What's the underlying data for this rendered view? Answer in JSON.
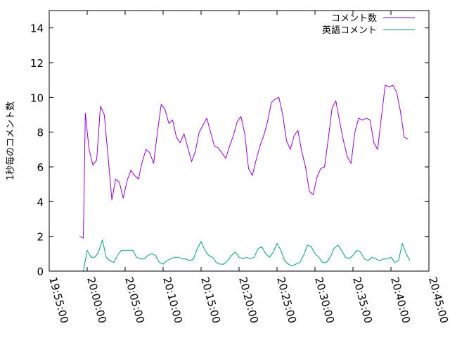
{
  "chart_data": {
    "type": "line",
    "ylabel": "1秒毎のコメント数",
    "xlabel": "",
    "title": "",
    "x_unit": "time",
    "xlim": [
      "19:55:00",
      "20:45:00"
    ],
    "ylim": [
      0,
      15
    ],
    "x_ticks": [
      "19:55:00",
      "20:00:00",
      "20:05:00",
      "20:10:00",
      "20:15:00",
      "20:20:00",
      "20:25:00",
      "20:30:00",
      "20:35:00",
      "20:40:00",
      "20:45:00"
    ],
    "y_ticks": [
      0,
      2,
      4,
      6,
      8,
      10,
      12,
      14
    ],
    "grid": false,
    "legend_position": "top-right",
    "series": [
      {
        "name": "コメント数",
        "color": "#9400d3",
        "x": [
          "19:59:00",
          "19:59:30",
          "19:59:45",
          "20:00:15",
          "20:00:45",
          "20:01:15",
          "20:01:45",
          "20:02:15",
          "20:02:45",
          "20:03:15",
          "20:03:45",
          "20:04:15",
          "20:04:45",
          "20:05:15",
          "20:05:45",
          "20:06:15",
          "20:06:45",
          "20:07:15",
          "20:07:45",
          "20:08:15",
          "20:08:45",
          "20:09:15",
          "20:09:45",
          "20:10:15",
          "20:10:45",
          "20:11:15",
          "20:11:45",
          "20:12:15",
          "20:12:45",
          "20:13:15",
          "20:13:45",
          "20:14:15",
          "20:14:45",
          "20:15:15",
          "20:15:45",
          "20:16:15",
          "20:16:45",
          "20:17:15",
          "20:17:45",
          "20:18:15",
          "20:18:45",
          "20:19:15",
          "20:19:45",
          "20:20:15",
          "20:20:45",
          "20:21:15",
          "20:21:45",
          "20:22:15",
          "20:22:45",
          "20:23:15",
          "20:23:45",
          "20:24:15",
          "20:24:45",
          "20:25:15",
          "20:25:45",
          "20:26:15",
          "20:26:45",
          "20:27:15",
          "20:27:45",
          "20:28:15",
          "20:28:45",
          "20:29:15",
          "20:29:45",
          "20:30:15",
          "20:30:45",
          "20:31:15",
          "20:31:45",
          "20:32:15",
          "20:32:45",
          "20:33:15",
          "20:33:45",
          "20:34:15",
          "20:34:45",
          "20:35:15",
          "20:35:45",
          "20:36:15",
          "20:36:45",
          "20:37:15",
          "20:37:45",
          "20:38:15",
          "20:38:45",
          "20:39:15",
          "20:39:45",
          "20:40:15",
          "20:40:45",
          "20:41:15",
          "20:41:45",
          "20:42:15"
        ],
        "values": [
          2.0,
          1.9,
          9.1,
          7.0,
          6.1,
          6.4,
          9.5,
          9.0,
          6.6,
          4.1,
          5.3,
          5.1,
          4.2,
          5.2,
          5.8,
          5.5,
          5.3,
          6.3,
          7.0,
          6.8,
          6.2,
          8.0,
          9.6,
          9.3,
          8.5,
          8.7,
          7.7,
          7.4,
          7.9,
          7.1,
          6.3,
          6.9,
          8.0,
          8.4,
          8.8,
          8.0,
          7.2,
          7.1,
          6.8,
          6.5,
          7.2,
          7.8,
          8.6,
          8.9,
          7.9,
          5.9,
          5.5,
          6.4,
          7.2,
          7.8,
          8.6,
          9.7,
          9.9,
          10.0,
          9.0,
          7.5,
          7.0,
          7.8,
          8.1,
          6.9,
          6.0,
          4.6,
          4.4,
          5.4,
          5.9,
          6.0,
          7.6,
          9.4,
          9.8,
          8.6,
          7.5,
          6.6,
          6.2,
          8.0,
          8.8,
          8.7,
          8.8,
          8.7,
          7.4,
          7.0,
          8.9,
          10.7,
          10.6,
          10.7,
          10.3,
          9.2,
          7.7,
          7.6
        ]
      },
      {
        "name": "英語コメント",
        "color": "#009e73",
        "x": [
          "19:59:00",
          "19:59:30",
          "20:00:00",
          "20:00:30",
          "20:01:00",
          "20:01:30",
          "20:02:00",
          "20:02:30",
          "20:03:00",
          "20:03:30",
          "20:04:00",
          "20:04:30",
          "20:05:00",
          "20:05:30",
          "20:06:00",
          "20:06:30",
          "20:07:00",
          "20:07:30",
          "20:08:00",
          "20:08:30",
          "20:09:00",
          "20:09:30",
          "20:10:00",
          "20:10:30",
          "20:11:00",
          "20:11:30",
          "20:12:00",
          "20:12:30",
          "20:13:00",
          "20:13:30",
          "20:14:00",
          "20:14:30",
          "20:15:00",
          "20:15:30",
          "20:16:00",
          "20:16:30",
          "20:17:00",
          "20:17:30",
          "20:18:00",
          "20:18:30",
          "20:19:00",
          "20:19:30",
          "20:20:00",
          "20:20:30",
          "20:21:00",
          "20:21:30",
          "20:22:00",
          "20:22:30",
          "20:23:00",
          "20:23:30",
          "20:24:00",
          "20:24:30",
          "20:25:00",
          "20:25:30",
          "20:26:00",
          "20:26:30",
          "20:27:00",
          "20:27:30",
          "20:28:00",
          "20:28:30",
          "20:29:00",
          "20:29:30",
          "20:30:00",
          "20:30:30",
          "20:31:00",
          "20:31:30",
          "20:32:00",
          "20:32:30",
          "20:33:00",
          "20:33:30",
          "20:34:00",
          "20:34:30",
          "20:35:00",
          "20:35:30",
          "20:36:00",
          "20:36:30",
          "20:37:00",
          "20:37:30",
          "20:38:00",
          "20:38:30",
          "20:39:00",
          "20:39:30",
          "20:40:00",
          "20:40:30",
          "20:41:00",
          "20:41:30",
          "20:42:00",
          "20:42:30"
        ],
        "values": [
          0.0,
          0.0,
          1.2,
          0.8,
          0.8,
          1.1,
          1.8,
          0.8,
          0.6,
          0.5,
          0.9,
          1.2,
          1.2,
          1.2,
          1.2,
          0.8,
          0.7,
          0.7,
          0.9,
          1.0,
          0.9,
          0.5,
          0.4,
          0.6,
          0.7,
          0.8,
          0.8,
          0.7,
          0.7,
          0.6,
          0.7,
          1.3,
          1.7,
          1.2,
          0.9,
          0.8,
          0.5,
          0.4,
          0.4,
          0.6,
          0.9,
          1.1,
          0.8,
          0.7,
          0.8,
          0.7,
          0.8,
          1.3,
          1.4,
          1.0,
          0.8,
          1.1,
          1.6,
          1.2,
          0.6,
          0.4,
          0.3,
          0.4,
          0.5,
          0.9,
          1.5,
          1.4,
          1.0,
          0.8,
          0.5,
          0.5,
          0.8,
          1.3,
          1.5,
          1.2,
          0.8,
          0.7,
          0.9,
          1.2,
          1.1,
          0.7,
          0.6,
          0.8,
          0.7,
          0.6,
          0.7,
          0.7,
          0.8,
          0.5,
          0.6,
          1.6,
          1.0,
          0.6
        ]
      }
    ]
  }
}
